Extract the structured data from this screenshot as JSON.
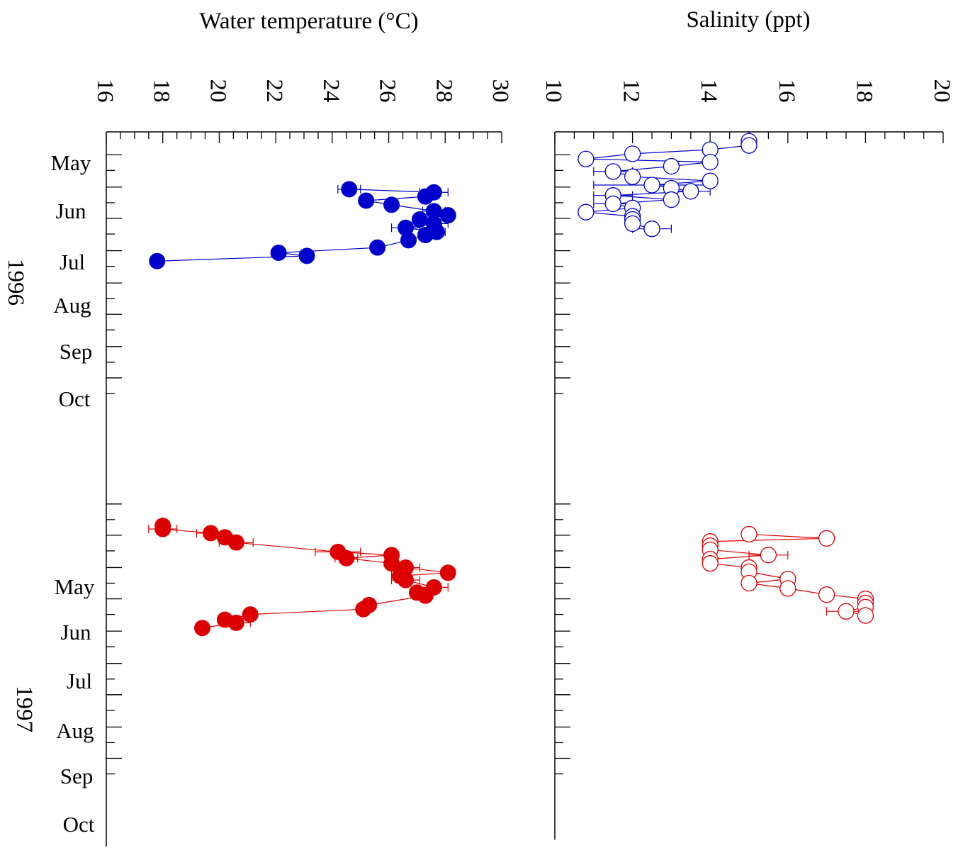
{
  "chart_data": [
    {
      "type": "scatter",
      "xlabel": "Water temperature (°C)",
      "xlim": [
        16,
        30
      ],
      "x_ticks": [
        "16",
        "18",
        "20",
        "22",
        "24",
        "26",
        "28",
        "30"
      ],
      "y_month_labels": {
        "1996": [
          "May",
          "Jun",
          "Jul",
          "Aug",
          "Sep",
          "Oct"
        ],
        "1997": [
          "May",
          "Jun",
          "Jul",
          "Aug",
          "Sep",
          "Oct"
        ]
      },
      "year_labels": [
        "1996",
        "1997"
      ],
      "series": [
        {
          "year": "1996",
          "color": "#0000cc",
          "marker": "filled-circle",
          "points": [
            {
              "date": "1996-06-03",
              "value": 24.6,
              "err": 0.4
            },
            {
              "date": "1996-06-06",
              "value": 27.6,
              "err": 0.5
            },
            {
              "date": "1996-06-10",
              "value": 27.3,
              "err": 0.0
            },
            {
              "date": "1996-06-14",
              "value": 25.2,
              "err": 0.0
            },
            {
              "date": "1996-06-18",
              "value": 26.1,
              "err": 0.0
            },
            {
              "date": "1996-06-24",
              "value": 27.6,
              "err": 0.4
            },
            {
              "date": "1996-06-28",
              "value": 28.1,
              "err": 0.0
            },
            {
              "date": "1996-07-02",
              "value": 27.1,
              "err": 0.0
            },
            {
              "date": "1996-07-06",
              "value": 27.6,
              "err": 0.5
            },
            {
              "date": "1996-07-10",
              "value": 26.6,
              "err": 0.5
            },
            {
              "date": "1996-07-14",
              "value": 27.7,
              "err": 0.3
            },
            {
              "date": "1996-07-17",
              "value": 27.3,
              "err": 0.0
            },
            {
              "date": "1996-07-22",
              "value": 26.7,
              "err": 0.0
            },
            {
              "date": "1996-07-29",
              "value": 25.6,
              "err": 0.0
            },
            {
              "date": "1996-08-03",
              "value": 22.1,
              "err": 0.0
            },
            {
              "date": "1996-08-06",
              "value": 23.1,
              "err": 0.0
            },
            {
              "date": "1996-08-11",
              "value": 17.8,
              "err": 0.0
            }
          ]
        },
        {
          "year": "1997",
          "color": "#dd0000",
          "marker": "filled-circle",
          "points": [
            {
              "date": "1997-04-22",
              "value": 18.0,
              "err": 0.0
            },
            {
              "date": "1997-04-25",
              "value": 18.0,
              "err": 0.5
            },
            {
              "date": "1997-04-29",
              "value": 19.7,
              "err": 0.5
            },
            {
              "date": "1997-05-03",
              "value": 20.2,
              "err": 0.0
            },
            {
              "date": "1997-05-08",
              "value": 20.6,
              "err": 0.6
            },
            {
              "date": "1997-05-17",
              "value": 24.2,
              "err": 0.8
            },
            {
              "date": "1997-05-20",
              "value": 26.1,
              "err": 0.0
            },
            {
              "date": "1997-05-23",
              "value": 24.5,
              "err": 0.4
            },
            {
              "date": "1997-05-28",
              "value": 26.1,
              "err": 0.0
            },
            {
              "date": "1997-06-01",
              "value": 26.6,
              "err": 0.5
            },
            {
              "date": "1997-06-06",
              "value": 28.1,
              "err": 0.0
            },
            {
              "date": "1997-06-09",
              "value": 26.4,
              "err": 0.3
            },
            {
              "date": "1997-06-13",
              "value": 26.6,
              "err": 0.5
            },
            {
              "date": "1997-06-20",
              "value": 27.6,
              "err": 0.5
            },
            {
              "date": "1997-06-25",
              "value": 27.0,
              "err": 0.0
            },
            {
              "date": "1997-06-28",
              "value": 27.3,
              "err": 0.0
            },
            {
              "date": "1997-07-07",
              "value": 25.3,
              "err": 0.0
            },
            {
              "date": "1997-07-11",
              "value": 25.1,
              "err": 0.0
            },
            {
              "date": "1997-07-16",
              "value": 21.1,
              "err": 0.0
            },
            {
              "date": "1997-07-21",
              "value": 20.2,
              "err": 0.0
            },
            {
              "date": "1997-07-24",
              "value": 20.6,
              "err": 0.5
            },
            {
              "date": "1997-07-29",
              "value": 19.4,
              "err": 0.0
            }
          ]
        }
      ]
    },
    {
      "type": "scatter",
      "xlabel": "Salinity (ppt)",
      "xlim": [
        10,
        20
      ],
      "x_ticks": [
        "10",
        "12",
        "14",
        "16",
        "18",
        "20"
      ],
      "series": [
        {
          "year": "1996",
          "color": "#0000cc",
          "marker": "open-circle",
          "points": [
            {
              "date": "1996-04-18",
              "value": 15.0,
              "err": 0.0
            },
            {
              "date": "1996-04-22",
              "value": 15.0,
              "err": 0.0
            },
            {
              "date": "1996-04-26",
              "value": 14.0,
              "err": 0.0
            },
            {
              "date": "1996-04-30",
              "value": 12.0,
              "err": 0.0
            },
            {
              "date": "1996-05-05",
              "value": 10.8,
              "err": 0.0
            },
            {
              "date": "1996-05-08",
              "value": 14.0,
              "err": 0.0
            },
            {
              "date": "1996-05-12",
              "value": 13.0,
              "err": 0.0
            },
            {
              "date": "1996-05-17",
              "value": 11.5,
              "err": 0.5
            },
            {
              "date": "1996-05-22",
              "value": 12.0,
              "err": 0.0
            },
            {
              "date": "1996-05-26",
              "value": 14.0,
              "err": 0.0
            },
            {
              "date": "1996-05-30",
              "value": 12.5,
              "err": 1.5
            },
            {
              "date": "1996-06-02",
              "value": 13.0,
              "err": 0.0
            },
            {
              "date": "1996-06-05",
              "value": 13.5,
              "err": 0.5
            },
            {
              "date": "1996-06-09",
              "value": 11.5,
              "err": 0.5
            },
            {
              "date": "1996-06-13",
              "value": 13.0,
              "err": 0.0
            },
            {
              "date": "1996-06-17",
              "value": 11.5,
              "err": 0.5
            },
            {
              "date": "1996-06-21",
              "value": 12.0,
              "err": 0.0
            },
            {
              "date": "1996-06-25",
              "value": 10.8,
              "err": 0.0
            },
            {
              "date": "1996-06-29",
              "value": 12.0,
              "err": 0.0
            },
            {
              "date": "1996-07-02",
              "value": 12.0,
              "err": 0.0
            },
            {
              "date": "1996-07-06",
              "value": 12.0,
              "err": 0.0
            },
            {
              "date": "1996-07-11",
              "value": 12.5,
              "err": 0.5
            }
          ]
        },
        {
          "year": "1997",
          "color": "#dd0000",
          "marker": "open-circle",
          "points": [
            {
              "date": "1997-04-30",
              "value": 15.0,
              "err": 0.0
            },
            {
              "date": "1997-05-04",
              "value": 17.0,
              "err": 0.0
            },
            {
              "date": "1997-05-07",
              "value": 14.0,
              "err": 0.0
            },
            {
              "date": "1997-05-11",
              "value": 14.0,
              "err": 0.0
            },
            {
              "date": "1997-05-15",
              "value": 14.0,
              "err": 0.0
            },
            {
              "date": "1997-05-20",
              "value": 15.5,
              "err": 0.5
            },
            {
              "date": "1997-05-24",
              "value": 14.0,
              "err": 0.0
            },
            {
              "date": "1997-05-28",
              "value": 14.0,
              "err": 0.0
            },
            {
              "date": "1997-06-01",
              "value": 15.0,
              "err": 0.0
            },
            {
              "date": "1997-06-05",
              "value": 15.0,
              "err": 0.0
            },
            {
              "date": "1997-06-12",
              "value": 16.0,
              "err": 0.0
            },
            {
              "date": "1997-06-16",
              "value": 15.0,
              "err": 0.0
            },
            {
              "date": "1997-06-21",
              "value": 16.0,
              "err": 0.0
            },
            {
              "date": "1997-06-27",
              "value": 17.0,
              "err": 0.0
            },
            {
              "date": "1997-07-01",
              "value": 18.0,
              "err": 0.0
            },
            {
              "date": "1997-07-05",
              "value": 18.0,
              "err": 0.0
            },
            {
              "date": "1997-07-09",
              "value": 18.0,
              "err": 0.0
            },
            {
              "date": "1997-07-13",
              "value": 17.5,
              "err": 0.5
            },
            {
              "date": "1997-07-17",
              "value": 18.0,
              "err": 0.0
            }
          ]
        }
      ]
    }
  ]
}
